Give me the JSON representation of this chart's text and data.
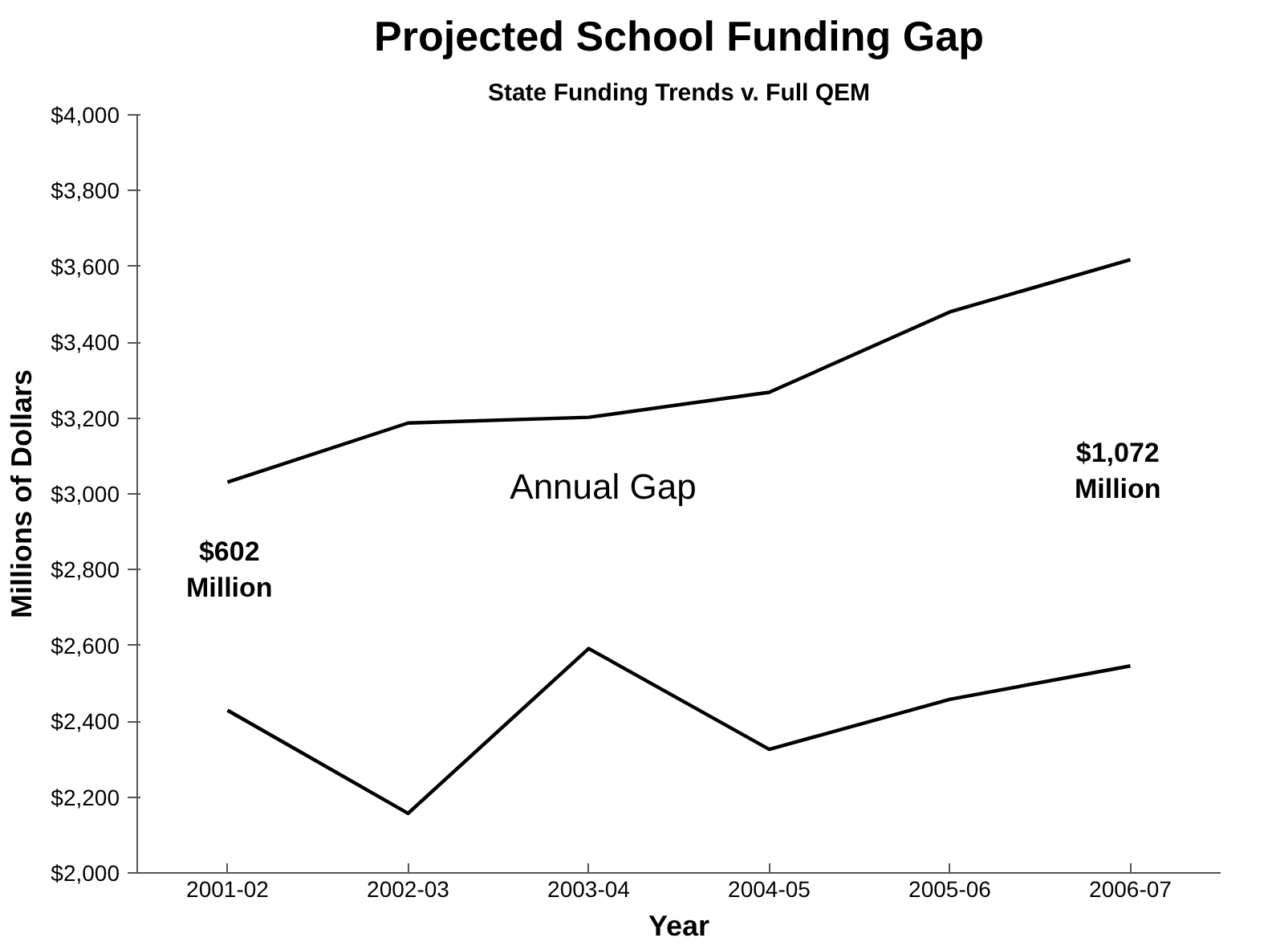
{
  "chart_data": {
    "type": "line",
    "title": "Projected School Funding Gap",
    "subtitle": "State Funding Trends v. Full QEM",
    "xlabel": "Year",
    "ylabel": "Millions of Dollars",
    "categories": [
      "2001-02",
      "2002-03",
      "2003-04",
      "2004-05",
      "2005-06",
      "2006-07"
    ],
    "series": [
      {
        "color": "#000000",
        "values": [
          3031,
          3187,
          3202,
          3268,
          3480,
          3618
        ]
      },
      {
        "color": "#000000",
        "values": [
          2429,
          2157,
          2592,
          2326,
          2458,
          2546
        ]
      }
    ],
    "ylim": [
      2000,
      4000
    ],
    "yticks": [
      {
        "value": 2000,
        "label": "$2,000"
      },
      {
        "value": 2200,
        "label": "$2,200"
      },
      {
        "value": 2400,
        "label": "$2,400"
      },
      {
        "value": 2600,
        "label": "$2,600"
      },
      {
        "value": 2800,
        "label": "$2,800"
      },
      {
        "value": 3000,
        "label": "$3,000"
      },
      {
        "value": 3200,
        "label": "$3,200"
      },
      {
        "value": 3400,
        "label": "$3,400"
      },
      {
        "value": 3600,
        "label": "$3,600"
      },
      {
        "value": 3800,
        "label": "$3,800"
      },
      {
        "value": 4000,
        "label": "$4,000"
      }
    ],
    "annotations": [
      "$602\nMillion",
      "Annual Gap",
      "$1,072\nMillion"
    ],
    "grid": false,
    "marker": "none",
    "line_style": "solid"
  }
}
